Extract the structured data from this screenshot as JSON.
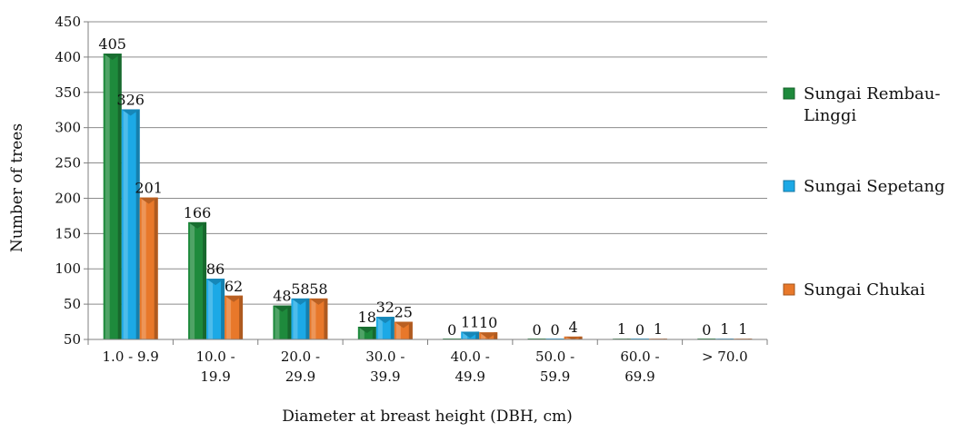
{
  "chart_data": {
    "type": "bar",
    "xlabel": "Diameter at breast height (DBH, cm)",
    "ylabel": "Number of trees",
    "ylim": [
      0,
      450
    ],
    "yticks": [
      "50",
      "50",
      "100",
      "150",
      "200",
      "250",
      "300",
      "350",
      "400",
      "450"
    ],
    "grid": true,
    "legend_position": "right",
    "categories": [
      [
        "1.0 - 9.9"
      ],
      [
        "10.0 -",
        "19.9"
      ],
      [
        "20.0 -",
        "29.9"
      ],
      [
        "30.0 -",
        "39.9"
      ],
      [
        "40.0 -",
        "49.9"
      ],
      [
        "50.0 -",
        "59.9"
      ],
      [
        "60.0 -",
        "69.9"
      ],
      [
        "> 70.0"
      ]
    ],
    "series": [
      {
        "name": "Sungai Rembau-Linggi",
        "legend_lines": [
          "Sungai Rembau-",
          "Linggi"
        ],
        "color": "#1e8a3c",
        "values": [
          405,
          166,
          48,
          18,
          0,
          0,
          1,
          0
        ]
      },
      {
        "name": "Sungai Sepetang",
        "legend_lines": [
          "Sungai Sepetang"
        ],
        "color": "#1ca9e6",
        "values": [
          326,
          86,
          58,
          32,
          11,
          0,
          0,
          1
        ]
      },
      {
        "name": "Sungai Chukai",
        "legend_lines": [
          "Sungai Chukai"
        ],
        "color": "#e8782a",
        "values": [
          201,
          62,
          58,
          25,
          10,
          4,
          1,
          1
        ]
      }
    ]
  }
}
